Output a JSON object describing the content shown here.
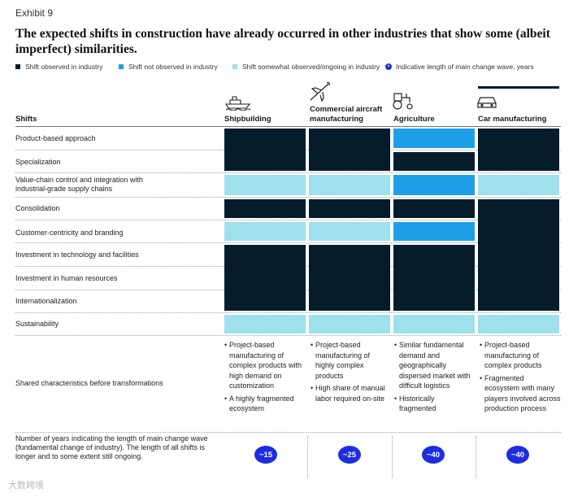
{
  "exhibit": "Exhibit 9",
  "title": "The expected shifts in construction have already occurred in other industries that show some (albeit imperfect) similarities.",
  "legend": [
    {
      "label": "Shift observed in industry",
      "color": "#051c2c"
    },
    {
      "label": "Shift not observed in industry",
      "color": "#1f9ee8"
    },
    {
      "label": "Shift somewhat observed/ongoing in industry",
      "color": "#9ee0ec"
    },
    {
      "label": "Indicative length of main change wave, years",
      "color": "#1f2de0",
      "icon": "x-dot-icon"
    }
  ],
  "shifts_header": "Shifts",
  "columns": [
    {
      "name": "Shipbuilding",
      "icon": "ship-icon"
    },
    {
      "name": "Commercial aircraft manufacturing",
      "icon": "airplane-icon"
    },
    {
      "name": "Agriculture",
      "icon": "tractor-icon"
    },
    {
      "name": "Car manufacturing",
      "icon": "car-icon"
    }
  ],
  "rows": [
    "Product-based approach",
    "Specialization",
    "Value-chain control and integration with industrial-grade supply chains",
    "Consolidation",
    "Customer-centricity and branding",
    "Investment in technology and facilities",
    "Investment in human resources",
    "Internationalization",
    "Sustainability"
  ],
  "chart_data": {
    "type": "table",
    "title": "The expected shifts in construction have already occurred in other industries that show some (albeit imperfect) similarities.",
    "status_key": {
      "observed": "Shift observed in industry",
      "not_observed": "Shift not observed in industry",
      "somewhat": "Shift somewhat observed/ongoing in industry"
    },
    "status": [
      [
        "observed",
        "observed",
        "not_observed",
        "observed"
      ],
      [
        "observed",
        "observed",
        "observed",
        "observed"
      ],
      [
        "somewhat",
        "somewhat",
        "not_observed",
        "somewhat"
      ],
      [
        "observed",
        "observed",
        "observed",
        "observed"
      ],
      [
        "somewhat",
        "somewhat",
        "not_observed",
        "observed"
      ],
      [
        "observed",
        "observed",
        "observed",
        "observed"
      ],
      [
        "observed",
        "observed",
        "observed",
        "observed"
      ],
      [
        "observed",
        "observed",
        "observed",
        "observed"
      ],
      [
        "somewhat",
        "somewhat",
        "somewhat",
        "somewhat"
      ]
    ],
    "wave_years": [
      "~15",
      "~25",
      "~40",
      "~40"
    ]
  },
  "shared": {
    "label": "Shared characteristics before transformations",
    "items": [
      [
        "Project-based manufacturing of complex products with high demand on customization",
        "A highly fragmented ecosystem"
      ],
      [
        "Project-based manufacturing of highly complex products",
        "High share of manual labor required on-site"
      ],
      [
        "Similar fundamental demand and geographically dispersed market with difficult logistics",
        "Historically fragmented"
      ],
      [
        "Project-based manufacturing of complex products",
        "Fragmented ecosystem with many players involved across production process"
      ]
    ]
  },
  "years_label": "Number of years indicating the length of main change wave (fundamental change of industry). The length of all shifts is longer and to some extent still ongoing.",
  "watermark": "大数跨境"
}
